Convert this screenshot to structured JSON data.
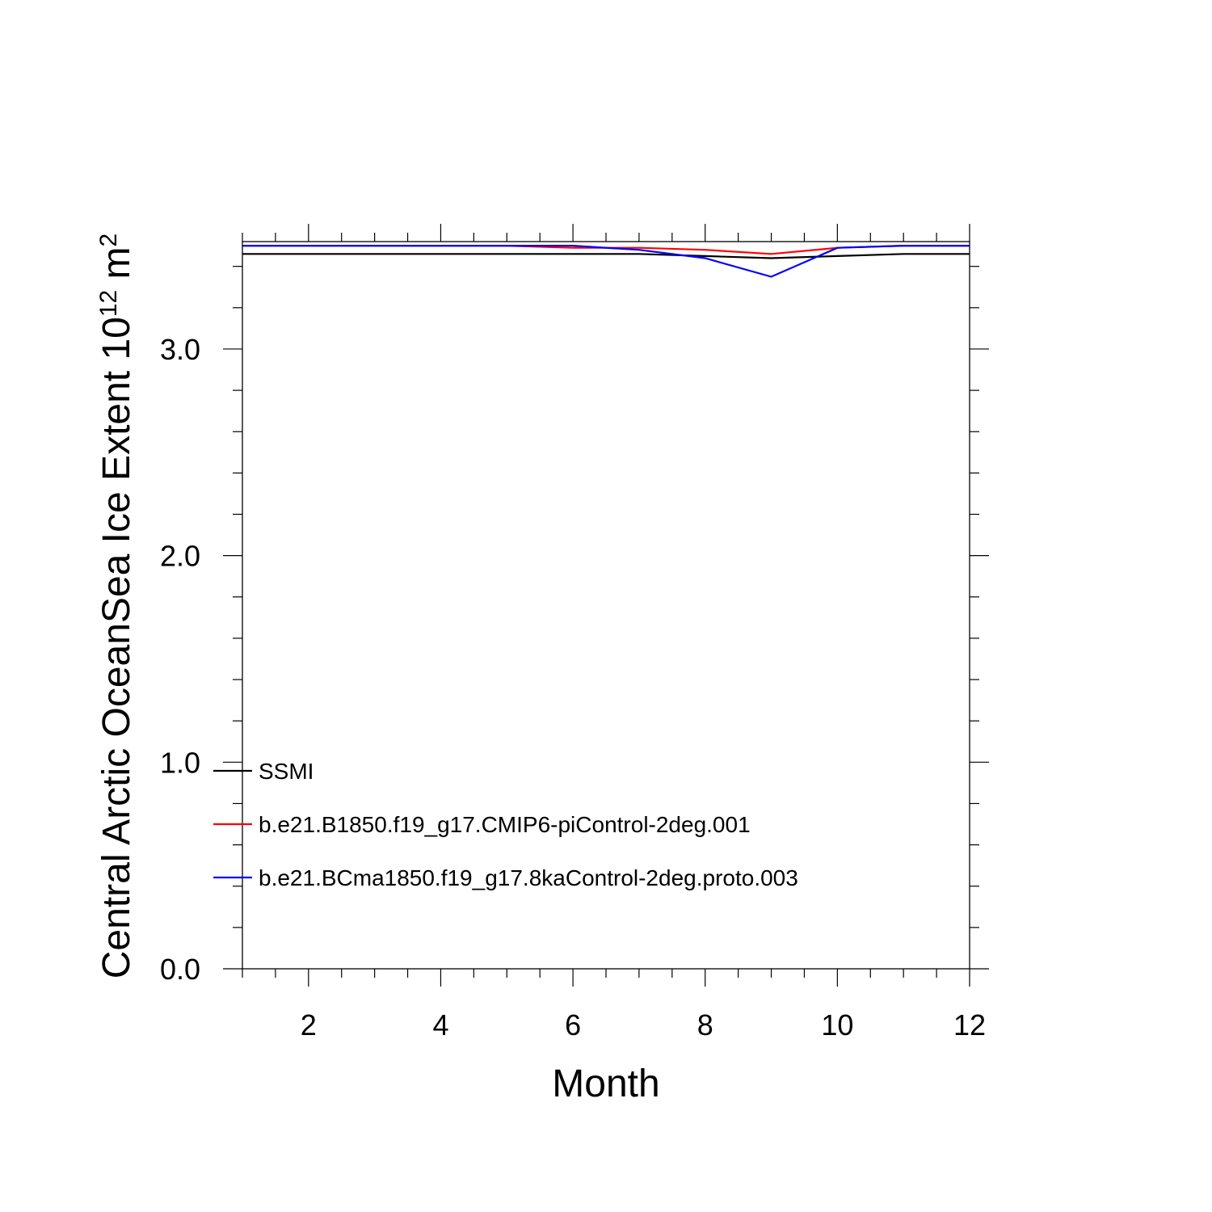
{
  "chart_data": {
    "type": "line",
    "title": "",
    "xlabel": "Month",
    "ylabel": {
      "base": "Central Arctic OceanSea Ice Extent 10",
      "exp": "12",
      "unit": " m",
      "unit_exp": "2"
    },
    "xlim": [
      1,
      12
    ],
    "ylim": [
      0,
      3.52
    ],
    "x": [
      1,
      2,
      3,
      4,
      5,
      6,
      7,
      8,
      9,
      10,
      11,
      12
    ],
    "xticks": [
      2,
      4,
      6,
      8,
      10,
      12
    ],
    "xtick_labels": [
      "2",
      "4",
      "6",
      "8",
      "10",
      "12"
    ],
    "yticks": [
      0,
      1,
      2,
      3
    ],
    "ytick_labels": [
      "0.0",
      "1.0",
      "2.0",
      "3.0"
    ],
    "grid": false,
    "legend_position": "bottom-left inside",
    "series": [
      {
        "name": "SSMI",
        "color": "#000000",
        "values": [
          3.46,
          3.46,
          3.46,
          3.46,
          3.46,
          3.46,
          3.46,
          3.45,
          3.44,
          3.45,
          3.46,
          3.46
        ]
      },
      {
        "name": "b.e21.B1850.f19_g17.CMIP6-piControl-2deg.001",
        "color": "#ff0000",
        "values": [
          3.5,
          3.5,
          3.5,
          3.5,
          3.5,
          3.49,
          3.49,
          3.48,
          3.46,
          3.49,
          3.5,
          3.5
        ]
      },
      {
        "name": "b.e21.BCma1850.f19_g17.8kaControl-2deg.proto.003",
        "color": "#0000ff",
        "values": [
          3.5,
          3.5,
          3.5,
          3.5,
          3.5,
          3.5,
          3.48,
          3.44,
          3.35,
          3.49,
          3.5,
          3.5
        ]
      }
    ]
  }
}
